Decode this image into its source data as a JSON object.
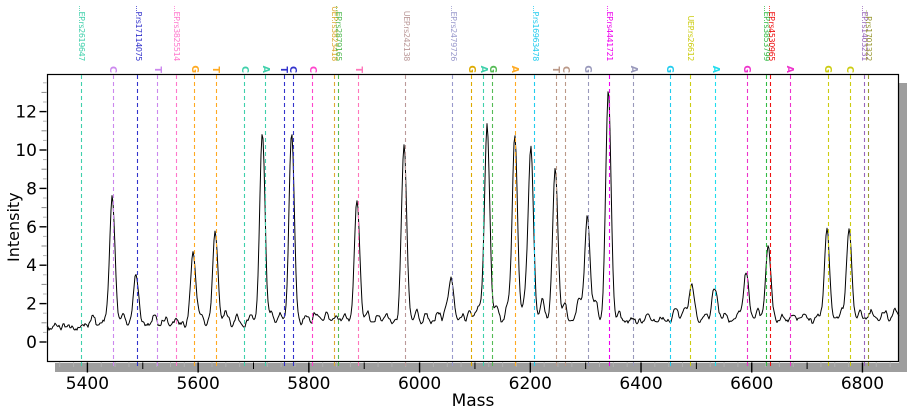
{
  "chart_data": {
    "type": "line",
    "title": "",
    "xlabel": "Mass",
    "ylabel": "Intensity",
    "x_axis": {
      "min": 5327,
      "max": 6866,
      "major_ticks": [
        5400,
        5600,
        5800,
        6000,
        6200,
        6400,
        6600,
        6800
      ],
      "minor_tick_step": 25,
      "medium_tick_step": 100
    },
    "y_axis": {
      "min": 0,
      "max_shown": 14,
      "major_ticks": [
        0,
        2,
        4,
        6,
        8,
        10,
        12
      ],
      "minor_tick_step": 0.5
    },
    "legend": "none",
    "grid": "off",
    "trace_color": "#000000",
    "frame_color": "#000000",
    "shadow_color": "#9e9e9e",
    "baseline_intensity_left": 0.82,
    "baseline_intensity_right": 1.12,
    "peaks": [
      {
        "mass": 5445,
        "intensity": 7.4
      },
      {
        "mass": 5488,
        "intensity": 3.5
      },
      {
        "mass": 5591,
        "intensity": 4.6
      },
      {
        "mass": 5631,
        "intensity": 5.7
      },
      {
        "mass": 5716,
        "intensity": 10.9
      },
      {
        "mass": 5769,
        "intensity": 10.8
      },
      {
        "mass": 5887,
        "intensity": 7.4
      },
      {
        "mass": 5972,
        "intensity": 10.2
      },
      {
        "mass": 6057,
        "intensity": 3.3
      },
      {
        "mass": 6122,
        "intensity": 11.2
      },
      {
        "mass": 6172,
        "intensity": 10.7
      },
      {
        "mass": 6201,
        "intensity": 10.1
      },
      {
        "mass": 6245,
        "intensity": 8.9
      },
      {
        "mass": 6303,
        "intensity": 6.5
      },
      {
        "mass": 6341,
        "intensity": 13.2
      },
      {
        "mass": 6492,
        "intensity": 2.9
      },
      {
        "mass": 6533,
        "intensity": 2.9
      },
      {
        "mass": 6590,
        "intensity": 3.7
      },
      {
        "mass": 6630,
        "intensity": 5.0
      },
      {
        "mass": 6736,
        "intensity": 5.8
      },
      {
        "mass": 6776,
        "intensity": 5.9
      }
    ],
    "noise_bumps": [
      [
        5410,
        0.5
      ],
      [
        5432,
        0.3
      ],
      [
        5465,
        0.45
      ],
      [
        5520,
        0.55
      ],
      [
        5540,
        0.4
      ],
      [
        5562,
        0.3
      ],
      [
        5605,
        0.5
      ],
      [
        5650,
        0.75
      ],
      [
        5670,
        0.4
      ],
      [
        5694,
        0.55
      ],
      [
        5733,
        0.6
      ],
      [
        5748,
        0.5
      ],
      [
        5795,
        0.55
      ],
      [
        5813,
        0.7
      ],
      [
        5832,
        0.5
      ],
      [
        5850,
        0.45
      ],
      [
        5865,
        0.5
      ],
      [
        5905,
        0.7
      ],
      [
        5924,
        0.5
      ],
      [
        5942,
        0.45
      ],
      [
        5995,
        0.7
      ],
      [
        6013,
        0.55
      ],
      [
        6033,
        0.6
      ],
      [
        6047,
        0.5
      ],
      [
        6076,
        0.55
      ],
      [
        6091,
        0.7
      ],
      [
        6106,
        0.9
      ],
      [
        6140,
        0.8
      ],
      [
        6158,
        0.85
      ],
      [
        6190,
        1.0
      ],
      [
        6222,
        1.2
      ],
      [
        6262,
        1.1
      ],
      [
        6288,
        1.2
      ],
      [
        6318,
        1.1
      ],
      [
        6360,
        0.5
      ],
      [
        6387,
        0.3
      ],
      [
        6413,
        0.5
      ],
      [
        6440,
        0.35
      ],
      [
        6462,
        0.8
      ],
      [
        6478,
        0.5
      ],
      [
        6516,
        0.35
      ],
      [
        6552,
        0.4
      ],
      [
        6576,
        0.4
      ],
      [
        6612,
        0.5
      ],
      [
        6657,
        0.25
      ],
      [
        6675,
        0.3
      ],
      [
        6697,
        0.35
      ],
      [
        6720,
        0.3
      ],
      [
        6762,
        0.5
      ],
      [
        6796,
        0.5
      ],
      [
        6816,
        0.55
      ],
      [
        6840,
        0.45
      ],
      [
        6858,
        0.55
      ]
    ],
    "markers": [
      {
        "mass": 5388,
        "text": "...EP.rs2619647",
        "kind": "snp",
        "color": "#3fd0ab"
      },
      {
        "mass": 5446,
        "text": "C",
        "kind": "allele",
        "color": "#cc88ee"
      },
      {
        "mass": 5490,
        "text": "...P.rs17114075",
        "kind": "snp",
        "color": "#3333cc"
      },
      {
        "mass": 5526,
        "text": "T",
        "kind": "allele",
        "color": "#cc88ee"
      },
      {
        "mass": 5560,
        "text": "...EP.rs3825514",
        "kind": "snp",
        "color": "#ff77cc"
      },
      {
        "mass": 5593,
        "text": "G",
        "kind": "allele",
        "color": "#ffaa22"
      },
      {
        "mass": 5632,
        "text": "T",
        "kind": "allele",
        "color": "#ffaa22"
      },
      {
        "mass": 5683,
        "text": "C",
        "kind": "allele",
        "color": "#3fd0ab"
      },
      {
        "mass": 5721,
        "text": "A",
        "kind": "allele",
        "color": "#3fd0ab"
      },
      {
        "mass": 5755,
        "text": "T",
        "kind": "allele",
        "color": "#3333cc"
      },
      {
        "mass": 5771,
        "text": "C",
        "kind": "allele",
        "color": "#3333cc"
      },
      {
        "mass": 5806,
        "text": "C",
        "kind": "allele",
        "color": "#ff44cc"
      },
      {
        "mass": 5845,
        "text": "UEP.rs3823418",
        "kind": "snp",
        "color": "#ddaa33"
      },
      {
        "mass": 5852,
        "text": "...EP.rs2879165",
        "kind": "snp",
        "color": "#55bb55"
      },
      {
        "mass": 5889,
        "text": "T",
        "kind": "allele",
        "color": "#ff77bb"
      },
      {
        "mass": 5974,
        "text": "UEP.rs242138",
        "kind": "snp",
        "color": "#bb9999"
      },
      {
        "mass": 6059,
        "text": "...EP.rs2479726",
        "kind": "snp",
        "color": "#9999cc"
      },
      {
        "mass": 6093,
        "text": "G",
        "kind": "allele",
        "color": "#ddaa00"
      },
      {
        "mass": 6115,
        "text": "A",
        "kind": "allele",
        "color": "#3fd0ab"
      },
      {
        "mass": 6131,
        "text": "G",
        "kind": "allele",
        "color": "#55bb55"
      },
      {
        "mass": 6172,
        "text": "A",
        "kind": "allele",
        "color": "#ffaa22"
      },
      {
        "mass": 6207,
        "text": "...P.rs16963478",
        "kind": "snp",
        "color": "#22ccee"
      },
      {
        "mass": 6246,
        "text": "T",
        "kind": "allele",
        "color": "#bb9988"
      },
      {
        "mass": 6263,
        "text": "C",
        "kind": "allele",
        "color": "#bb9988"
      },
      {
        "mass": 6304,
        "text": "G",
        "kind": "allele",
        "color": "#9999bb"
      },
      {
        "mass": 6342,
        "text": "...EP.rs4441721",
        "kind": "snp",
        "color": "#ee00ee"
      },
      {
        "mass": 6386,
        "text": "A",
        "kind": "allele",
        "color": "#9999bb"
      },
      {
        "mass": 6452,
        "text": "G",
        "kind": "allele",
        "color": "#22ccee"
      },
      {
        "mass": 6488,
        "text": "UEP.rs26612",
        "kind": "snp",
        "color": "#cccc11"
      },
      {
        "mass": 6534,
        "text": "A",
        "kind": "allele",
        "color": "#22ddee"
      },
      {
        "mass": 6591,
        "text": "G",
        "kind": "allele",
        "color": "#ee33cc"
      },
      {
        "mass": 6625,
        "text": "...EP.rs3853799",
        "kind": "snp",
        "color": "#33bb44"
      },
      {
        "mass": 6633,
        "text": "...EP.rs4530965",
        "kind": "snp",
        "color": "#ee1111"
      },
      {
        "mass": 6669,
        "text": "A",
        "kind": "allele",
        "color": "#ee33cc"
      },
      {
        "mass": 6737,
        "text": "G",
        "kind": "allele",
        "color": "#cccc11"
      },
      {
        "mass": 6777,
        "text": "C",
        "kind": "allele",
        "color": "#cccc11"
      },
      {
        "mass": 6802,
        "text": "...EP.rs1403231",
        "kind": "snp",
        "color": "#9966bb"
      },
      {
        "mass": 6810,
        "text": "...P.rs1701322",
        "kind": "snp",
        "color": "#999933"
      }
    ]
  }
}
